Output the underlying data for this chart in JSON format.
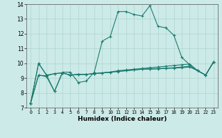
{
  "xlabel": "Humidex (Indice chaleur)",
  "bg_color": "#cceae7",
  "grid_color": "#aed4d1",
  "line_color": "#1a7a6e",
  "xlim": [
    -0.5,
    23.5
  ],
  "ylim": [
    7,
    14
  ],
  "xticks": [
    0,
    1,
    2,
    3,
    4,
    5,
    6,
    7,
    8,
    9,
    10,
    11,
    12,
    13,
    14,
    15,
    16,
    17,
    18,
    19,
    20,
    21,
    22,
    23
  ],
  "yticks": [
    7,
    8,
    9,
    10,
    11,
    12,
    13,
    14
  ],
  "lines": [
    [
      7.3,
      10.0,
      9.2,
      8.1,
      9.4,
      9.4,
      8.7,
      8.8,
      9.4,
      11.5,
      11.8,
      13.5,
      13.5,
      13.3,
      13.2,
      13.9,
      12.5,
      12.4,
      11.9,
      10.4,
      9.9,
      9.5,
      9.2,
      10.1
    ],
    [
      7.3,
      10.0,
      9.2,
      9.3,
      9.35,
      9.2,
      9.25,
      9.25,
      9.3,
      9.35,
      9.4,
      9.5,
      9.55,
      9.6,
      9.65,
      9.7,
      9.75,
      9.8,
      9.85,
      9.9,
      9.95,
      9.5,
      9.2,
      10.1
    ],
    [
      7.3,
      9.2,
      9.15,
      9.3,
      9.35,
      9.2,
      9.25,
      9.25,
      9.3,
      9.35,
      9.4,
      9.45,
      9.5,
      9.55,
      9.6,
      9.62,
      9.65,
      9.67,
      9.7,
      9.75,
      9.8,
      9.5,
      9.2,
      10.1
    ],
    [
      7.3,
      9.2,
      9.1,
      8.1,
      9.35,
      9.2,
      9.25,
      9.25,
      9.3,
      9.35,
      9.4,
      9.45,
      9.5,
      9.55,
      9.6,
      9.6,
      9.62,
      9.65,
      9.67,
      9.7,
      9.75,
      9.5,
      9.2,
      10.1
    ]
  ]
}
